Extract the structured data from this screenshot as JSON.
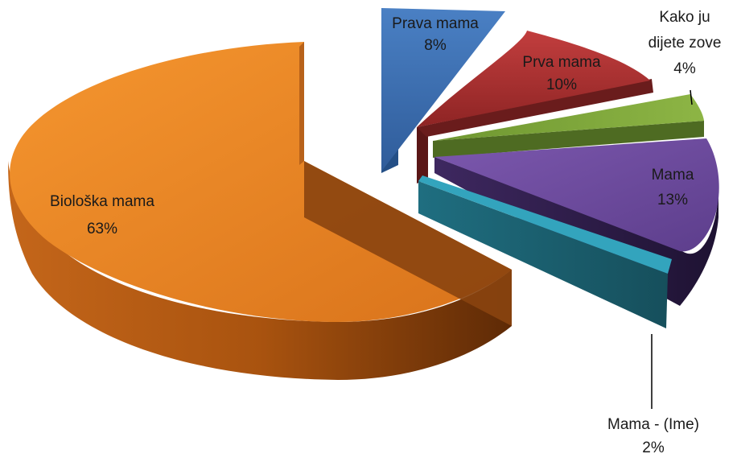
{
  "chart_data": {
    "type": "pie",
    "style": "3d-exploded",
    "title": "",
    "slices": [
      {
        "label": "Biološka mama",
        "value": 63,
        "display": "63%",
        "color": "#E07D22"
      },
      {
        "label": "Prava mama",
        "value": 8,
        "display": "8%",
        "color": "#3E6FB3"
      },
      {
        "label": "Prva mama",
        "value": 10,
        "display": "10%",
        "color": "#B23434"
      },
      {
        "label": "Kako ju dijete zove",
        "value": 4,
        "display": "4%",
        "color": "#7FA33A"
      },
      {
        "label": "Mama",
        "value": 13,
        "display": "13%",
        "color": "#6F4C9E"
      },
      {
        "label": "Mama - (Ime)",
        "value": 2,
        "display": "2%",
        "color": "#2E94AB"
      }
    ]
  }
}
